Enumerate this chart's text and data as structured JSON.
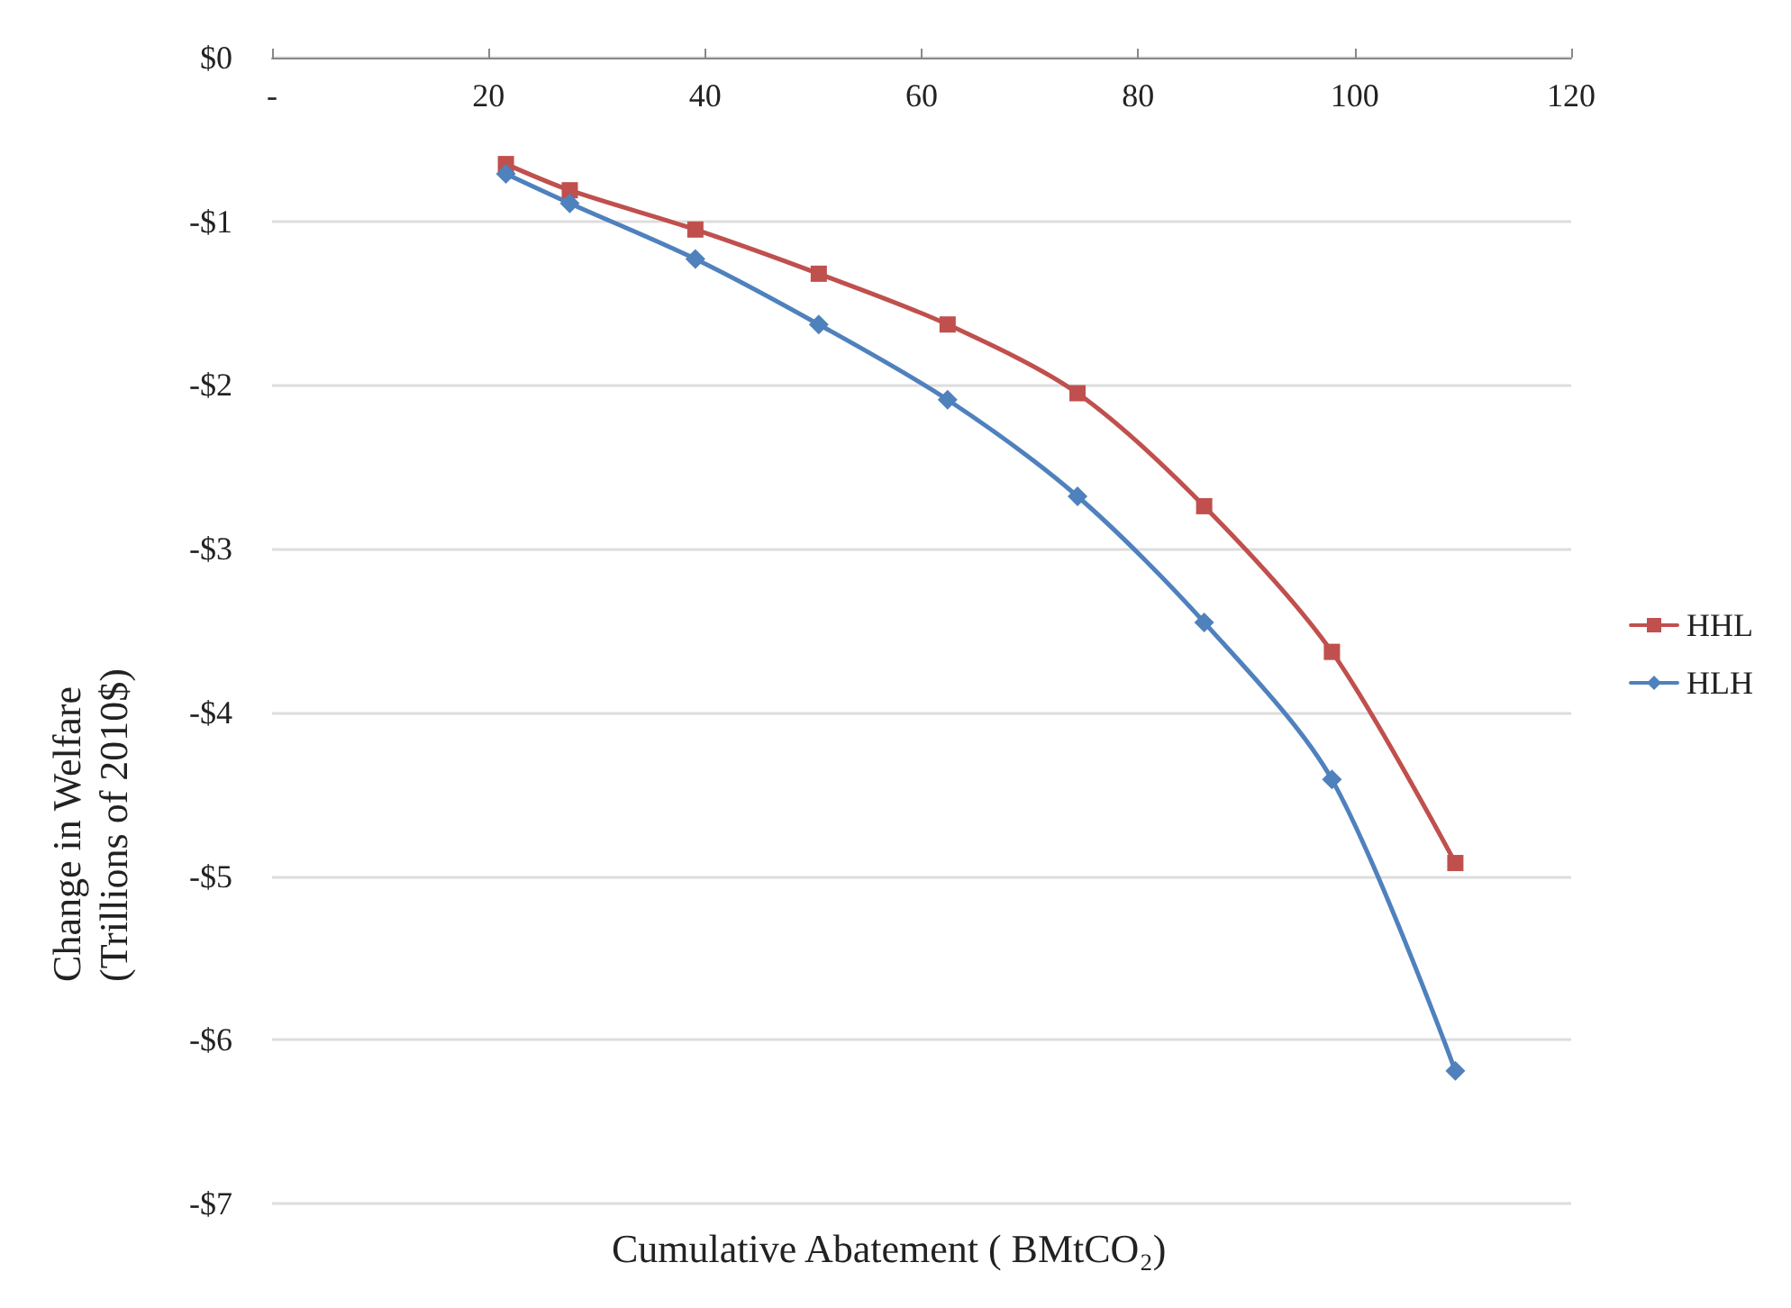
{
  "chart_data": {
    "type": "line",
    "xlabel": "Cumulative Abatement ( BMtCO₂)",
    "ylabel": "Change in Welfare\n(Trillions of 2010$)",
    "x": [
      21.6,
      27.5,
      39.1,
      50.5,
      62.4,
      74.4,
      86.1,
      97.9,
      109.3
    ],
    "series": [
      {
        "name": "HHL",
        "color": "#c0504d",
        "marker": "square",
        "values": [
          -0.65,
          -0.81,
          -1.05,
          -1.32,
          -1.63,
          -2.05,
          -2.74,
          -3.63,
          -4.92
        ]
      },
      {
        "name": "HLH",
        "color": "#4f81bd",
        "marker": "diamond",
        "values": [
          -0.71,
          -0.89,
          -1.23,
          -1.63,
          -2.09,
          -2.68,
          -3.45,
          -4.41,
          -6.19
        ]
      }
    ],
    "xlim": [
      0,
      120
    ],
    "xticks": [
      {
        "value": 0,
        "label": "-"
      },
      20,
      40,
      60,
      80,
      100,
      120
    ],
    "ylim": [
      -7,
      0
    ],
    "yticks": [
      {
        "value": 0,
        "label": "$0"
      },
      {
        "value": -1,
        "label": "-$1"
      },
      {
        "value": -2,
        "label": "-$2"
      },
      {
        "value": -3,
        "label": "-$3"
      },
      {
        "value": -4,
        "label": "-$4"
      },
      {
        "value": -5,
        "label": "-$5"
      },
      {
        "value": -6,
        "label": "-$6"
      },
      {
        "value": -7,
        "label": "-$7"
      }
    ],
    "grid": "y",
    "legend": "right",
    "line_style": "solid"
  }
}
